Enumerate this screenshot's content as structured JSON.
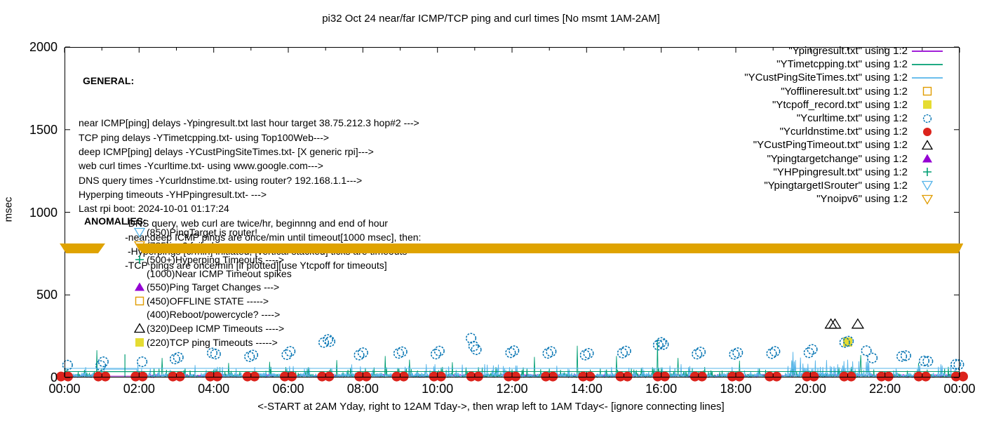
{
  "title": "pi32 Oct 24  near/far ICMP/TCP ping and curl times [No msmt 1AM-2AM]",
  "axes": {
    "ylabel": "msec",
    "xlabel": "<-START at 2AM Yday, right to 12AM Tday->, then wrap left to 1AM Tday<- [ignore connecting lines]",
    "x_ticks": [
      "00:00",
      "02:00",
      "04:00",
      "06:00",
      "08:00",
      "10:00",
      "12:00",
      "14:00",
      "16:00",
      "18:00",
      "20:00",
      "22:00",
      "00:00"
    ],
    "y_ticks": [
      "0",
      "500",
      "1000",
      "1500",
      "2000"
    ]
  },
  "general": {
    "heading": "GENERAL:",
    "lines": [
      "near ICMP[ping] delays -Ypingresult.txt last hour target 38.75.212.3 hop#2 --->",
      "TCP ping delays -YTimetcpping.txt- using Top100Web--->",
      "deep ICMP[ping] delays -YCustPingSiteTimes.txt- [X generic rpi]--->",
      "web curl times -Ycurltime.txt- using www.google.com--->",
      "DNS query times -Ycurldnstime.txt- using router? 192.168.1.1--->",
      "Hyperping timeouts -YHPpingresult.txt- --->",
      "Last rpi boot: 2024-10-01 01:17:24",
      "                 -DNS query, web curl are twice/hr, beginnng and end of hour",
      "                 -near,deep ICMP pings are once/min until timeout[1000 msec], then:",
      "                  -Hyperpings [6/min] initiated; [vertical stacked] ticks are timeouts",
      "                 -TCP pings are once/min [if plotted][use Ytcpoff for timeouts]"
    ]
  },
  "anomalies": {
    "heading": "ANOMALIES:",
    "rows": [
      {
        "marker": "tridown-open",
        "color": "#56b4e9",
        "text": "(850)PingTarget is router!"
      },
      {
        "marker": "tridown-open",
        "color": "#e09c00",
        "text": "(785)ipv6 failed --->"
      },
      {
        "marker": "plus",
        "color": "#009e73",
        "text": "(500+)Hyperping Timeouts ---->"
      },
      {
        "marker": "none",
        "color": "",
        "text": "(1000)Near ICMP Timeout spikes"
      },
      {
        "marker": "triangle-filled",
        "color": "#9400d3",
        "text": "(550)Ping Target Changes --->"
      },
      {
        "marker": "square-open",
        "color": "#e09c00",
        "text": "(450)OFFLINE STATE ----->"
      },
      {
        "marker": "none",
        "color": "",
        "text": "(400)Reboot/powercycle? ---->"
      },
      {
        "marker": "triangle-open",
        "color": "#000000",
        "text": "(320)Deep ICMP Timeouts ---->"
      },
      {
        "marker": "square-filled",
        "color": "#e5dc32",
        "text": "(220)TCP ping Timeouts ----->"
      }
    ]
  },
  "legend": {
    "entries": [
      {
        "label": "\"Ypingresult.txt\" using 1:2",
        "marker": "line",
        "color": "#9400d3"
      },
      {
        "label": "\"YTimetcpping.txt\" using 1:2",
        "marker": "line",
        "color": "#009e73"
      },
      {
        "label": "\"YCustPingSiteTimes.txt\" using 1:2",
        "marker": "line",
        "color": "#56b4e9"
      },
      {
        "label": "\"Yofflineresult.txt\" using 1:2",
        "marker": "square-open",
        "color": "#e09c00"
      },
      {
        "label": "\"Ytcpoff_record.txt\" using 1:2",
        "marker": "square-filled",
        "color": "#e5dc32"
      },
      {
        "label": "\"Ycurltime.txt\" using 1:2",
        "marker": "circle-open",
        "color": "#0072b2"
      },
      {
        "label": "\"Ycurldnstime.txt\" using 1:2",
        "marker": "circle-filled",
        "color": "#dc231c"
      },
      {
        "label": "\"YCustPingTimeout.txt\" using 1:2",
        "marker": "triangle-open",
        "color": "#000000"
      },
      {
        "label": "\"Ypingtargetchange\" using 1:2",
        "marker": "triangle-filled",
        "color": "#9400d3"
      },
      {
        "label": "\"YHPpingresult.txt\" using 1:2",
        "marker": "plus",
        "color": "#009e73"
      },
      {
        "label": "\"YpingtargetISrouter\" using 1:2",
        "marker": "tridown-open",
        "color": "#56b4e9"
      },
      {
        "label": "\"Ynoipv6\" using 1:2",
        "marker": "tridown-open",
        "color": "#e09c00"
      }
    ]
  },
  "chart_data": {
    "type": "line",
    "title": "pi32 Oct 24  near/far ICMP/TCP ping and curl times [No msmt 1AM-2AM]",
    "xlabel": "<-START at 2AM Yday, right to 12AM Tday->, then wrap left to 1AM Tday<- [ignore connecting lines]",
    "ylabel": "msec",
    "xlim_hours": [
      0,
      24
    ],
    "ylim": [
      0,
      2000
    ],
    "x_tick_labels": [
      "00:00",
      "02:00",
      "04:00",
      "06:00",
      "08:00",
      "10:00",
      "12:00",
      "14:00",
      "16:00",
      "18:00",
      "20:00",
      "22:00",
      "00:00"
    ],
    "y_tick_values": [
      0,
      500,
      1000,
      1500,
      2000
    ],
    "grid": false,
    "legend_position": "top-right",
    "no_measurement_gap_hours": [
      1.08,
      1.92
    ],
    "colors": {
      "near_icmp": "#9400d3",
      "tcp_ping": "#009e73",
      "deep_icmp": "#56b4e9",
      "curl": "#0072b2",
      "dns": "#dc231c",
      "offline": "#e09c00",
      "tcpoff": "#e5dc32",
      "deep_timeout": "#000000",
      "noipv6_band": "#dfa300"
    },
    "noise_lines": [
      {
        "name": "Ypingresult.txt near ICMP ping",
        "color": "#9400d3",
        "base": 9,
        "amp": 9,
        "spike_chance": 0,
        "spike_amp": 0,
        "gap_value": 8
      },
      {
        "name": "YTimetcpping.txt TCP ping",
        "color": "#009e73",
        "base": 2,
        "amp": 20,
        "spike_chance": 0.22,
        "spike_amp": 45,
        "gap_value": 35
      },
      {
        "name": "YCustPingSiteTimes.txt deep ICMP ping",
        "color": "#56b4e9",
        "base": 4,
        "amp": 26,
        "spike_chance": 0.16,
        "spike_amp": 55,
        "gap_value": 50,
        "busy_from": 19.35,
        "busy_to": 21.6,
        "busy_amp": 78
      }
    ],
    "avg_lines": [
      {
        "name": "deep ICMP running level",
        "color": "#56b4e9",
        "value": 55
      },
      {
        "name": "TCP ping running level",
        "color": "#009e73",
        "value": 36
      }
    ],
    "tcp_spikes": [
      [
        0.87,
        165
      ],
      [
        2.62,
        118
      ],
      [
        4.4,
        88
      ],
      [
        5.5,
        95
      ],
      [
        7.3,
        105
      ],
      [
        8.6,
        130
      ],
      [
        9.25,
        108
      ],
      [
        10.4,
        92
      ],
      [
        12.6,
        125
      ],
      [
        13.75,
        192
      ],
      [
        14.8,
        130
      ],
      [
        15.9,
        230
      ],
      [
        16.45,
        118
      ],
      [
        18.1,
        102
      ],
      [
        19.5,
        98
      ],
      [
        21.35,
        136
      ],
      [
        22.9,
        88
      ]
    ],
    "curl_points": [
      [
        0.08,
        75
      ],
      [
        0.97,
        72
      ],
      [
        1.04,
        95
      ],
      [
        2.08,
        95
      ],
      [
        2.96,
        112
      ],
      [
        3.05,
        122
      ],
      [
        3.96,
        148
      ],
      [
        4.05,
        142
      ],
      [
        4.96,
        126
      ],
      [
        5.05,
        136
      ],
      [
        5.96,
        138
      ],
      [
        6.05,
        158
      ],
      [
        6.95,
        212
      ],
      [
        7.06,
        230
      ],
      [
        7.12,
        218
      ],
      [
        7.9,
        136
      ],
      [
        8.0,
        150
      ],
      [
        8.96,
        146
      ],
      [
        9.05,
        156
      ],
      [
        9.96,
        142
      ],
      [
        10.05,
        160
      ],
      [
        10.9,
        238
      ],
      [
        10.97,
        190
      ],
      [
        11.04,
        168
      ],
      [
        11.96,
        150
      ],
      [
        12.05,
        162
      ],
      [
        12.96,
        146
      ],
      [
        13.05,
        157
      ],
      [
        13.96,
        136
      ],
      [
        14.05,
        146
      ],
      [
        14.96,
        148
      ],
      [
        15.05,
        160
      ],
      [
        15.92,
        196
      ],
      [
        16.0,
        212
      ],
      [
        16.06,
        200
      ],
      [
        16.96,
        142
      ],
      [
        17.05,
        154
      ],
      [
        17.96,
        140
      ],
      [
        18.05,
        150
      ],
      [
        18.96,
        145
      ],
      [
        19.05,
        158
      ],
      [
        19.96,
        150
      ],
      [
        20.05,
        170
      ],
      [
        20.92,
        212
      ],
      [
        21.02,
        220
      ],
      [
        21.5,
        162
      ],
      [
        21.66,
        118
      ],
      [
        22.45,
        128
      ],
      [
        22.56,
        132
      ],
      [
        23.05,
        100
      ],
      [
        23.15,
        98
      ],
      [
        23.9,
        80
      ],
      [
        23.98,
        78
      ]
    ],
    "dns_cluster_hours": [
      0,
      1,
      2,
      3,
      4,
      5,
      6,
      7,
      8,
      9,
      10,
      11,
      12,
      13,
      14,
      15,
      16,
      17,
      18,
      19,
      20,
      21,
      22,
      23,
      24
    ],
    "dns_value": 6,
    "deep_timeout_points": [
      [
        20.55,
        322
      ],
      [
        20.66,
        322
      ],
      [
        21.27,
        322
      ]
    ],
    "tcp_timeout_points": [
      [
        21.0,
        215
      ]
    ],
    "noipv6_band": {
      "value": 780,
      "half_height_msec": 30,
      "segments_hours": [
        [
          -0.13,
          1.09
        ],
        [
          1.9,
          24.1
        ]
      ]
    },
    "hyperping_ticks": [
      [
        1.62,
        140
      ]
    ]
  }
}
